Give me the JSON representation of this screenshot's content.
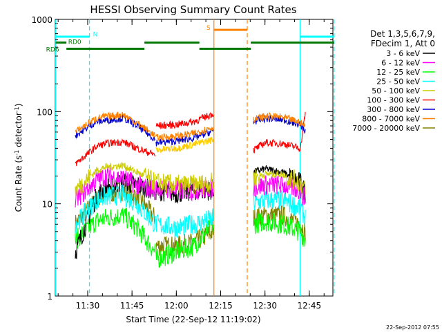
{
  "chart_data": {
    "type": "line",
    "title": "HESSI Observing Summary Count Rates",
    "xlabel": "Start Time (22-Sep-12 11:19:02)",
    "ylabel_main": "Count Rate (s",
    "ylabel_sup1": "-1",
    "ylabel_mid": " detector",
    "ylabel_sup2": "-1",
    "ylabel_end": ")",
    "y_scale": "log",
    "ylim": [
      1,
      1000
    ],
    "xlim": [
      11.317,
      12.883
    ],
    "x_ticks": [
      {
        "t": 11.5,
        "label": "11:30"
      },
      {
        "t": 11.75,
        "label": "11:45"
      },
      {
        "t": 12.0,
        "label": "12:00"
      },
      {
        "t": 12.25,
        "label": "12:15"
      },
      {
        "t": 12.5,
        "label": "12:30"
      },
      {
        "t": 12.75,
        "label": "12:45"
      }
    ],
    "y_ticks": [
      {
        "v": 1,
        "label": "1"
      },
      {
        "v": 10,
        "label": "10"
      },
      {
        "v": 100,
        "label": "100"
      },
      {
        "v": 1000,
        "label": "1000"
      }
    ],
    "legend": {
      "placement": "right",
      "header": [
        "Det 1,3,5,6,7,9,",
        "FDecim 1, Att 0"
      ],
      "entries": [
        {
          "label": "3 - 6 keV",
          "color": "#000000"
        },
        {
          "label": "6 - 12 keV",
          "color": "#ff00ff"
        },
        {
          "label": "12 - 25 keV",
          "color": "#00ff00"
        },
        {
          "label": "25 - 50 keV",
          "color": "#00ffff"
        },
        {
          "label": "50 - 100 keV",
          "color": "#cccc00"
        },
        {
          "label": "100 - 300 keV",
          "color": "#ff0000"
        },
        {
          "label": "300 - 800 keV",
          "color": "#0000cc"
        },
        {
          "label": "800 - 7000 keV",
          "color": "#ff8000"
        },
        {
          "label": "7000 - 20000 keV",
          "color": "#808000"
        }
      ]
    },
    "segments": [
      {
        "t0": 11.43,
        "t1": 11.88
      },
      {
        "t0": 11.885,
        "t1": 12.21
      },
      {
        "t0": 12.435,
        "t1": 12.728
      }
    ],
    "series": [
      {
        "color": "#808000",
        "values": [
          [
            11.43,
            6
          ],
          [
            11.55,
            11
          ],
          [
            11.6,
            12.5
          ],
          [
            11.7,
            14
          ],
          [
            11.78,
            12
          ],
          [
            11.88,
            7
          ],
          [
            11.885,
            3.5
          ],
          [
            12.0,
            3.5
          ],
          [
            12.1,
            3.8
          ],
          [
            12.21,
            5
          ],
          [
            12.435,
            7
          ],
          [
            12.5,
            7.5
          ],
          [
            12.6,
            7.5
          ],
          [
            12.7,
            6
          ],
          [
            12.728,
            5
          ]
        ]
      },
      {
        "color": "#00ff00",
        "values": [
          [
            11.43,
            4
          ],
          [
            11.55,
            6.5
          ],
          [
            11.6,
            7
          ],
          [
            11.7,
            7.5
          ],
          [
            11.78,
            5.5
          ],
          [
            11.88,
            3
          ],
          [
            11.885,
            2.5
          ],
          [
            12.0,
            3
          ],
          [
            12.1,
            3.5
          ],
          [
            12.21,
            6
          ],
          [
            12.435,
            6
          ],
          [
            12.5,
            6.5
          ],
          [
            12.6,
            6
          ],
          [
            12.7,
            5
          ],
          [
            12.728,
            4
          ]
        ]
      },
      {
        "color": "#000000",
        "values": [
          [
            11.43,
            3
          ],
          [
            11.55,
            12
          ],
          [
            11.6,
            15
          ],
          [
            11.7,
            17
          ],
          [
            11.78,
            16
          ],
          [
            11.88,
            14
          ],
          [
            11.885,
            14
          ],
          [
            12.0,
            13
          ],
          [
            12.1,
            14
          ],
          [
            12.21,
            14
          ],
          [
            12.435,
            22
          ],
          [
            12.5,
            24
          ],
          [
            12.6,
            22
          ],
          [
            12.7,
            17
          ],
          [
            12.728,
            13
          ]
        ]
      },
      {
        "color": "#00ffff",
        "values": [
          [
            11.43,
            6
          ],
          [
            11.55,
            11
          ],
          [
            11.6,
            12
          ],
          [
            11.7,
            12.5
          ],
          [
            11.78,
            10
          ],
          [
            11.88,
            6
          ],
          [
            11.885,
            6
          ],
          [
            12.0,
            5.5
          ],
          [
            12.1,
            6
          ],
          [
            12.21,
            7
          ],
          [
            12.435,
            10
          ],
          [
            12.5,
            11
          ],
          [
            12.6,
            11
          ],
          [
            12.7,
            9
          ],
          [
            12.728,
            7
          ]
        ]
      },
      {
        "color": "#ff00ff",
        "values": [
          [
            11.43,
            11
          ],
          [
            11.55,
            18
          ],
          [
            11.6,
            20
          ],
          [
            11.7,
            19
          ],
          [
            11.78,
            16
          ],
          [
            11.88,
            14
          ],
          [
            11.885,
            15
          ],
          [
            12.0,
            14
          ],
          [
            12.1,
            14
          ],
          [
            12.21,
            15
          ],
          [
            12.435,
            15
          ],
          [
            12.5,
            16
          ],
          [
            12.6,
            16
          ],
          [
            12.7,
            14
          ],
          [
            12.728,
            11
          ]
        ]
      },
      {
        "color": "#cccc00",
        "values": [
          [
            11.43,
            14
          ],
          [
            11.55,
            23
          ],
          [
            11.6,
            25
          ],
          [
            11.7,
            26
          ],
          [
            11.78,
            22
          ],
          [
            11.88,
            17
          ],
          [
            11.885,
            17
          ],
          [
            12.0,
            16
          ],
          [
            12.1,
            16
          ],
          [
            12.21,
            17
          ],
          [
            12.435,
            19
          ],
          [
            12.5,
            21
          ],
          [
            12.6,
            21
          ],
          [
            12.7,
            17
          ],
          [
            12.728,
            14
          ]
        ]
      },
      {
        "color": "#ff0000",
        "values": [
          [
            11.43,
            27
          ],
          [
            11.55,
            42
          ],
          [
            11.6,
            45
          ],
          [
            11.7,
            47
          ],
          [
            11.78,
            40
          ],
          [
            11.88,
            34
          ],
          [
            11.885,
            70
          ],
          [
            12.0,
            72
          ],
          [
            12.1,
            78
          ],
          [
            12.21,
            95
          ],
          [
            12.435,
            38
          ],
          [
            12.5,
            46
          ],
          [
            12.6,
            45
          ],
          [
            12.7,
            40
          ],
          [
            12.728,
            100
          ]
        ]
      },
      {
        "color": "#ffcc00",
        "values": [
          [
            11.885,
            38
          ],
          [
            12.0,
            40
          ],
          [
            12.1,
            44
          ],
          [
            12.21,
            50
          ]
        ]
      },
      {
        "color": "#0000cc",
        "values": [
          [
            11.43,
            55
          ],
          [
            11.55,
            78
          ],
          [
            11.6,
            80
          ],
          [
            11.7,
            85
          ],
          [
            11.78,
            70
          ],
          [
            11.88,
            50
          ],
          [
            11.885,
            46
          ],
          [
            12.0,
            48
          ],
          [
            12.1,
            52
          ],
          [
            12.21,
            62
          ],
          [
            12.435,
            78
          ],
          [
            12.5,
            84
          ],
          [
            12.6,
            82
          ],
          [
            12.7,
            72
          ],
          [
            12.728,
            62
          ]
        ]
      },
      {
        "color": "#ff8000",
        "values": [
          [
            11.43,
            60
          ],
          [
            11.55,
            85
          ],
          [
            11.6,
            88
          ],
          [
            11.7,
            93
          ],
          [
            11.78,
            75
          ],
          [
            11.88,
            55
          ],
          [
            11.885,
            52
          ],
          [
            12.0,
            54
          ],
          [
            12.1,
            58
          ],
          [
            12.21,
            68
          ],
          [
            12.435,
            82
          ],
          [
            12.5,
            89
          ],
          [
            12.6,
            87
          ],
          [
            12.7,
            76
          ],
          [
            12.728,
            68
          ]
        ]
      }
    ],
    "vlines": [
      {
        "t": 11.319,
        "color": "#00ffff",
        "style": "solid"
      },
      {
        "t": 11.51,
        "color": "#00ffff",
        "style": "dashed"
      },
      {
        "t": 12.212,
        "color": "#ff8000",
        "style": "solid"
      },
      {
        "t": 12.4,
        "color": "#ff8000",
        "style": "dashed"
      },
      {
        "t": 12.698,
        "color": "#00ffff",
        "style": "solid"
      },
      {
        "t": 12.89,
        "color": "#00ffff",
        "style": "dashed"
      }
    ],
    "flag_bars": [
      {
        "label": "N",
        "color": "#00ffff",
        "v": 650,
        "segs": [
          [
            11.319,
            11.51
          ],
          [
            12.698,
            12.89
          ]
        ],
        "label_t": 11.53,
        "label_v": 700
      },
      {
        "label": "S",
        "color": "#ff8000",
        "v": 770,
        "segs": [
          [
            12.212,
            12.4
          ]
        ],
        "label_t": 12.17,
        "label_v": 830
      },
      {
        "label": "RD0",
        "color": "#007700",
        "v": 560,
        "segs": [
          [
            11.319,
            11.38
          ],
          [
            11.82,
            12.13
          ],
          [
            12.42,
            12.89
          ]
        ],
        "label_t": 11.39,
        "label_v": 580
      },
      {
        "label": "RD6",
        "color": "#007700",
        "v": 480,
        "segs": [
          [
            11.38,
            11.82
          ],
          [
            12.13,
            12.42
          ]
        ],
        "label_t": 11.265,
        "label_v": 480
      }
    ],
    "footer_date": "22-Sep-2012 07:55"
  }
}
